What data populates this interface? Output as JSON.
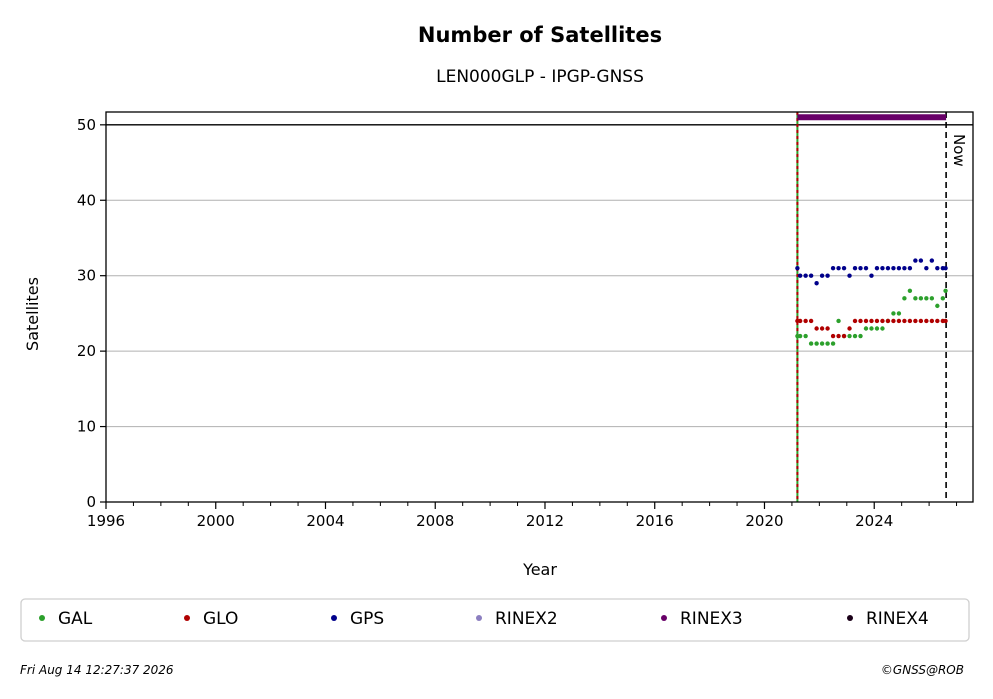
{
  "chart_data": {
    "type": "scatter",
    "title": "Number of Satellites",
    "subtitle": "LEN000GLP - IPGP-GNSS",
    "xlabel": "Year",
    "ylabel": "Satellites",
    "xlim": [
      1996,
      2027.6
    ],
    "ylim": [
      0,
      51.7
    ],
    "x_ticks": [
      "1996",
      "2000",
      "2004",
      "2008",
      "2012",
      "2016",
      "2020",
      "2024"
    ],
    "y_ticks": [
      "0",
      "10",
      "20",
      "30",
      "40",
      "50"
    ],
    "grid": "horizontal",
    "reference_line": 50,
    "start_line": 2021.2,
    "now_line": {
      "x": 2026.62,
      "label": "Now"
    },
    "legend_position": "bottom",
    "series": [
      {
        "name": "GAL",
        "color": "#2ca02c",
        "x": [
          2021.2,
          2021.3,
          2021.5,
          2021.7,
          2021.9,
          2022.1,
          2022.3,
          2022.5,
          2022.7,
          2022.9,
          2023.1,
          2023.3,
          2023.5,
          2023.7,
          2023.9,
          2024.1,
          2024.3,
          2024.5,
          2024.7,
          2024.9,
          2025.1,
          2025.3,
          2025.5,
          2025.7,
          2025.9,
          2026.1,
          2026.3,
          2026.5,
          2026.6
        ],
        "y": [
          22,
          22,
          22,
          21,
          21,
          21,
          21,
          21,
          24,
          22,
          22,
          22,
          22,
          23,
          23,
          23,
          23,
          24,
          25,
          25,
          27,
          28,
          27,
          27,
          27,
          27,
          26,
          27,
          28
        ]
      },
      {
        "name": "GLO",
        "color": "#b00000",
        "x": [
          2021.2,
          2021.3,
          2021.5,
          2021.7,
          2021.9,
          2022.1,
          2022.3,
          2022.5,
          2022.7,
          2022.9,
          2023.1,
          2023.3,
          2023.5,
          2023.7,
          2023.9,
          2024.1,
          2024.3,
          2024.5,
          2024.7,
          2024.9,
          2025.1,
          2025.3,
          2025.5,
          2025.7,
          2025.9,
          2026.1,
          2026.3,
          2026.5,
          2026.6
        ],
        "y": [
          24,
          24,
          24,
          24,
          23,
          23,
          23,
          22,
          22,
          22,
          23,
          24,
          24,
          24,
          24,
          24,
          24,
          24,
          24,
          24,
          24,
          24,
          24,
          24,
          24,
          24,
          24,
          24,
          24
        ]
      },
      {
        "name": "GPS",
        "color": "#00008b",
        "x": [
          2021.2,
          2021.3,
          2021.5,
          2021.7,
          2021.9,
          2022.1,
          2022.3,
          2022.5,
          2022.7,
          2022.9,
          2023.1,
          2023.3,
          2023.5,
          2023.7,
          2023.9,
          2024.1,
          2024.3,
          2024.5,
          2024.7,
          2024.9,
          2025.1,
          2025.3,
          2025.5,
          2025.7,
          2025.9,
          2026.1,
          2026.3,
          2026.5,
          2026.6
        ],
        "y": [
          31,
          30,
          30,
          30,
          29,
          30,
          30,
          31,
          31,
          31,
          30,
          31,
          31,
          31,
          30,
          31,
          31,
          31,
          31,
          31,
          31,
          31,
          32,
          32,
          31,
          32,
          31,
          31,
          31
        ]
      },
      {
        "name": "RINEX2",
        "color": "#8c7fc0",
        "x": [],
        "y": []
      },
      {
        "name": "RINEX3",
        "color": "#680068",
        "bar": [
          2021.2,
          2026.62
        ],
        "value": 51
      },
      {
        "name": "RINEX4",
        "color": "#1a0018",
        "x": [],
        "y": []
      }
    ]
  },
  "footer": {
    "timestamp": "Fri Aug 14 12:27:37 2026",
    "credit": "©GNSS@ROB"
  }
}
